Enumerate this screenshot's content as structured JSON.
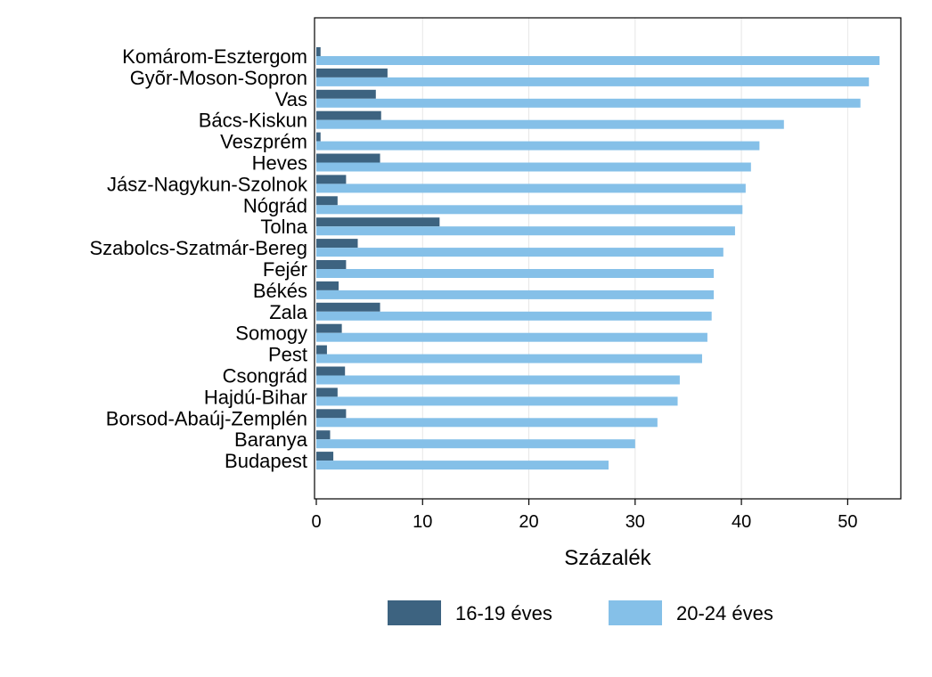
{
  "chart_data": {
    "type": "bar",
    "orientation": "horizontal",
    "categories": [
      "Komárom-Esztergom",
      "Gyõr-Moson-Sopron",
      "Vas",
      "Bács-Kiskun",
      "Veszprém",
      "Heves",
      "Jász-Nagykun-Szolnok",
      "Nógrád",
      "Tolna",
      "Szabolcs-Szatmár-Bereg",
      "Fejér",
      "Békés",
      "Zala",
      "Somogy",
      "Pest",
      "Csongrád",
      "Hajdú-Bihar",
      "Borsod-Abaúj-Zemplén",
      "Baranya",
      "Budapest"
    ],
    "series": [
      {
        "name": "16-19 éves",
        "color": "#3d6380",
        "values": [
          0.4,
          6.7,
          5.6,
          6.1,
          0.4,
          6.0,
          2.8,
          2.0,
          11.6,
          3.9,
          2.8,
          2.1,
          6.0,
          2.4,
          1.0,
          2.7,
          2.0,
          2.8,
          1.3,
          1.6
        ]
      },
      {
        "name": "20-24 éves",
        "color": "#85c0e8",
        "values": [
          53.0,
          52.0,
          51.2,
          44.0,
          41.7,
          40.9,
          40.4,
          40.1,
          39.4,
          38.3,
          37.4,
          37.4,
          37.2,
          36.8,
          36.3,
          34.2,
          34.0,
          32.1,
          30.0,
          27.5
        ]
      }
    ],
    "xlabel": "Százalék",
    "xlim": [
      0,
      55
    ],
    "xticks": [
      0,
      10,
      20,
      30,
      40,
      50
    ],
    "grid": "vertical",
    "legend_position": "bottom"
  }
}
